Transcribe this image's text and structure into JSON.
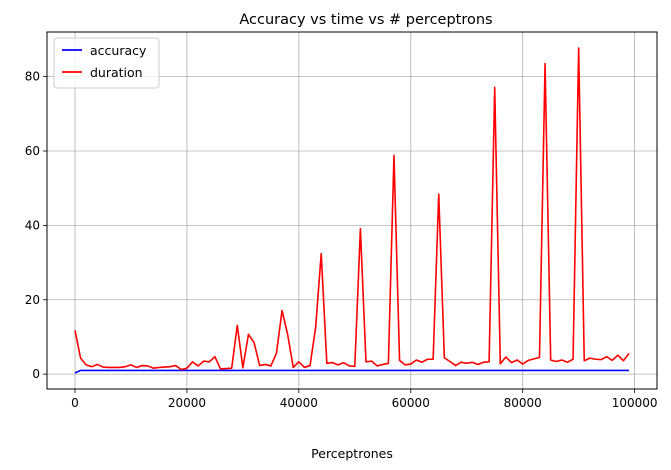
{
  "chart_data": {
    "type": "line",
    "title": "Accuracy vs time vs # perceptrons",
    "xlabel": "Perceptrones",
    "ylabel": "",
    "xlim": [
      -5000,
      104000
    ],
    "ylim": [
      -4,
      92
    ],
    "xticks": [
      0,
      20000,
      40000,
      60000,
      80000,
      100000
    ],
    "yticks": [
      0,
      20,
      40,
      60,
      80
    ],
    "grid": true,
    "legend_position": "top-left",
    "series": [
      {
        "name": "accuracy",
        "color": "#0000ff",
        "x": [
          0,
          1000,
          99000
        ],
        "y": [
          0.3,
          1.0,
          1.0
        ]
      },
      {
        "name": "duration",
        "color": "#ff0000",
        "x": [
          0,
          1000,
          2000,
          3000,
          4000,
          5000,
          6000,
          7000,
          8000,
          9000,
          10000,
          11000,
          12000,
          13000,
          14000,
          15000,
          16000,
          17000,
          18000,
          19000,
          20000,
          21000,
          22000,
          23000,
          24000,
          25000,
          26000,
          27000,
          28000,
          29000,
          30000,
          31000,
          32000,
          33000,
          34000,
          35000,
          36000,
          37000,
          38000,
          39000,
          40000,
          41000,
          42000,
          43000,
          44000,
          45000,
          46000,
          47000,
          48000,
          49000,
          50000,
          51000,
          52000,
          53000,
          54000,
          55000,
          56000,
          57000,
          58000,
          59000,
          60000,
          61000,
          62000,
          63000,
          64000,
          65000,
          66000,
          67000,
          68000,
          69000,
          70000,
          71000,
          72000,
          73000,
          74000,
          75000,
          76000,
          77000,
          78000,
          79000,
          80000,
          81000,
          82000,
          83000,
          84000,
          85000,
          86000,
          87000,
          88000,
          89000,
          90000,
          91000,
          92000,
          93000,
          94000,
          95000,
          96000,
          97000,
          98000,
          99000
        ],
        "y": [
          11.8,
          4.3,
          2.5,
          2.0,
          2.6,
          1.9,
          1.8,
          1.8,
          1.8,
          2.0,
          2.5,
          1.8,
          2.3,
          2.2,
          1.6,
          1.8,
          1.9,
          2.0,
          2.3,
          1.2,
          1.6,
          3.3,
          2.2,
          3.5,
          3.3,
          4.7,
          1.4,
          1.5,
          1.6,
          13.1,
          1.7,
          10.7,
          8.5,
          2.3,
          2.6,
          2.2,
          5.6,
          17.1,
          10.7,
          1.8,
          3.3,
          1.8,
          2.3,
          12.5,
          32.4,
          2.9,
          3.1,
          2.5,
          3.1,
          2.2,
          2.1,
          39.1,
          3.3,
          3.5,
          2.2,
          2.6,
          2.9,
          58.8,
          3.7,
          2.5,
          2.7,
          3.8,
          3.2,
          4.0,
          4.0,
          48.4,
          4.4,
          3.4,
          2.3,
          3.2,
          2.9,
          3.2,
          2.6,
          3.2,
          3.3,
          77.1,
          2.8,
          4.6,
          3.1,
          3.8,
          2.7,
          3.7,
          4.1,
          4.5,
          83.5,
          3.8,
          3.4,
          3.8,
          3.2,
          4.0,
          87.7,
          3.6,
          4.3,
          4.0,
          3.9,
          4.7,
          3.7,
          5.1,
          3.6,
          5.6
        ]
      }
    ]
  }
}
